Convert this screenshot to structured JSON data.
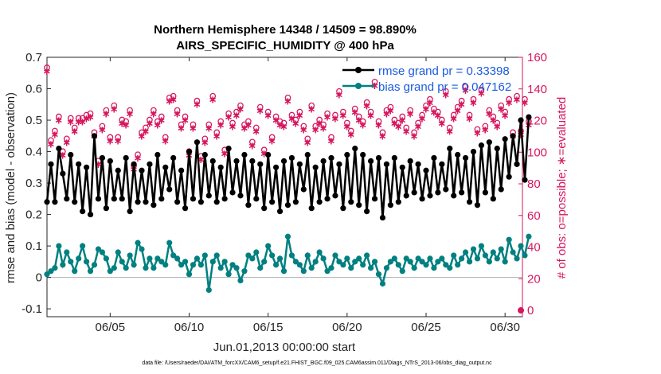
{
  "chart_data": {
    "type": "line",
    "title": "Northern Hemisphere 14348 / 14509 = 98.890%",
    "subtitle": "AIRS_SPECIFIC_HUMIDITY @ 400 hPa",
    "xlabel": "Jun.01,2013 00:00:00 start",
    "ylabel": "rmse and bias (model - observation)",
    "ylabel_right": "# of obs: o=possible; ∗=evaluated",
    "footnote": "data file: /Users/raeder/DAI/ATM_forcXX/CAM6_setup/f.e21.FHIST_BGC.f09_025.CAM6assim.011/Diags_NTrS_2013-06/obs_diag_output.nc",
    "xlim": [
      1.0,
      31.1
    ],
    "ylim": [
      -0.125,
      0.7
    ],
    "ylim_right": [
      -4,
      160
    ],
    "x_ticks": [
      5,
      10,
      15,
      20,
      25,
      30
    ],
    "x_tick_labels": [
      "06/05",
      "06/10",
      "06/15",
      "06/20",
      "06/25",
      "06/30"
    ],
    "y_ticks": [
      -0.1,
      0,
      0.1,
      0.2,
      0.3,
      0.4,
      0.5,
      0.6,
      0.7
    ],
    "y_tick_labels": [
      "-0.1",
      "0",
      "0.1",
      "0.2",
      "0.3",
      "0.4",
      "0.5",
      "0.6",
      "0.7"
    ],
    "y_right_ticks": [
      0,
      20,
      40,
      60,
      80,
      100,
      120,
      140,
      160
    ],
    "y_right_tick_labels": [
      "0",
      "20",
      "40",
      "60",
      "80",
      "100",
      "120",
      "140",
      "160"
    ],
    "grid": false,
    "zero_line": 0,
    "legend_position": "top-right",
    "series": [
      {
        "name": "rmse grand pr = 0.33398",
        "color": "#000000",
        "marker": "filled-circle",
        "start_day": 1.0,
        "step_days": 0.25,
        "values": [
          0.24,
          0.36,
          0.24,
          0.41,
          0.33,
          0.25,
          0.39,
          0.24,
          0.36,
          0.21,
          0.35,
          0.2,
          0.45,
          0.25,
          0.38,
          0.22,
          0.37,
          0.25,
          0.34,
          0.25,
          0.38,
          0.21,
          0.36,
          0.24,
          0.34,
          0.24,
          0.36,
          0.23,
          0.39,
          0.25,
          0.35,
          0.28,
          0.38,
          0.24,
          0.34,
          0.22,
          0.4,
          0.25,
          0.43,
          0.24,
          0.39,
          0.26,
          0.37,
          0.24,
          0.35,
          0.25,
          0.41,
          0.27,
          0.37,
          0.26,
          0.39,
          0.23,
          0.37,
          0.25,
          0.36,
          0.22,
          0.39,
          0.24,
          0.35,
          0.21,
          0.37,
          0.23,
          0.38,
          0.24,
          0.36,
          0.28,
          0.39,
          0.22,
          0.35,
          0.24,
          0.37,
          0.25,
          0.38,
          0.26,
          0.36,
          0.22,
          0.39,
          0.24,
          0.41,
          0.23,
          0.39,
          0.21,
          0.37,
          0.25,
          0.38,
          0.19,
          0.36,
          0.23,
          0.38,
          0.24,
          0.35,
          0.26,
          0.37,
          0.27,
          0.36,
          0.25,
          0.34,
          0.26,
          0.38,
          0.27,
          0.36,
          0.28,
          0.41,
          0.26,
          0.39,
          0.27,
          0.38,
          0.24,
          0.4,
          0.23,
          0.42,
          0.27,
          0.43,
          0.25,
          0.41,
          0.28,
          0.44,
          0.32,
          0.45,
          0.36,
          0.5,
          0.31,
          0.51
        ]
      },
      {
        "name": "bias grand pr = 0.047162",
        "color": "#008080",
        "marker": "filled-circle",
        "start_day": 1.0,
        "step_days": 0.25,
        "values": [
          0.01,
          0.02,
          0.03,
          0.1,
          0.04,
          0.08,
          0.05,
          0.02,
          0.06,
          0.1,
          0.05,
          0.02,
          0.04,
          0.09,
          0.08,
          0.06,
          0.02,
          0.03,
          0.08,
          0.05,
          0.03,
          0.07,
          0.04,
          0.11,
          0.09,
          0.03,
          0.06,
          0.03,
          0.06,
          0.05,
          0.04,
          0.11,
          0.07,
          0.06,
          0.04,
          0.05,
          0.01,
          0.04,
          0.06,
          0.04,
          0.07,
          -0.04,
          0.05,
          0.07,
          0.03,
          0.05,
          0.01,
          0.04,
          0.03,
          -0.01,
          0.02,
          0.07,
          0.06,
          0.08,
          0.03,
          0.05,
          0.1,
          0.07,
          0.04,
          0.06,
          0.02,
          0.13,
          0.07,
          0.05,
          0.04,
          0.02,
          0.07,
          0.03,
          0.05,
          0.08,
          0.06,
          0.02,
          0.03,
          0.07,
          0.05,
          0.04,
          0.06,
          0.03,
          0.05,
          0.06,
          0.04,
          0.07,
          0.03,
          0.05,
          0.01,
          -0.02,
          0.03,
          0.05,
          0.06,
          0.04,
          0.02,
          0.06,
          0.05,
          0.03,
          0.06,
          0.05,
          0.04,
          0.06,
          0.03,
          0.05,
          0.06,
          0.04,
          0.03,
          0.07,
          0.04,
          0.06,
          0.08,
          0.05,
          0.09,
          0.06,
          0.1,
          0.07,
          0.05,
          0.08,
          0.06,
          0.09,
          0.05,
          0.12,
          0.08,
          0.06,
          0.1,
          0.07,
          0.13
        ]
      }
    ],
    "obs_counts": {
      "color": "#d6175e",
      "possible_marker": "o",
      "evaluated_marker": "*",
      "start_day": 1.0,
      "step_days": 0.25,
      "values": [
        152,
        106,
        112,
        121,
        99,
        107,
        120,
        114,
        120,
        120,
        122,
        123,
        111,
        93,
        115,
        125,
        108,
        128,
        108,
        119,
        118,
        125,
        90,
        97,
        111,
        114,
        119,
        125,
        118,
        121,
        108,
        133,
        134,
        125,
        116,
        121,
        99,
        116,
        131,
        96,
        107,
        116,
        134,
        111,
        118,
        100,
        123,
        117,
        124,
        128,
        116,
        118,
        105,
        114,
        127,
        100,
        124,
        108,
        121,
        118,
        117,
        133,
        122,
        119,
        124,
        115,
        107,
        128,
        115,
        119,
        116,
        123,
        108,
        122,
        137,
        124,
        117,
        112,
        126,
        121,
        118,
        130,
        124,
        143,
        118,
        111,
        125,
        127,
        119,
        117,
        121,
        114,
        125,
        111,
        117,
        122,
        128,
        132,
        126,
        124,
        119,
        137,
        114,
        122,
        127,
        131,
        140,
        122,
        132,
        113,
        138,
        115,
        125,
        121,
        117,
        128,
        124,
        132,
        111,
        134,
        112,
        132,
        118
      ]
    },
    "zero_count_marker": {
      "day": 31.0,
      "value": 0
    }
  }
}
